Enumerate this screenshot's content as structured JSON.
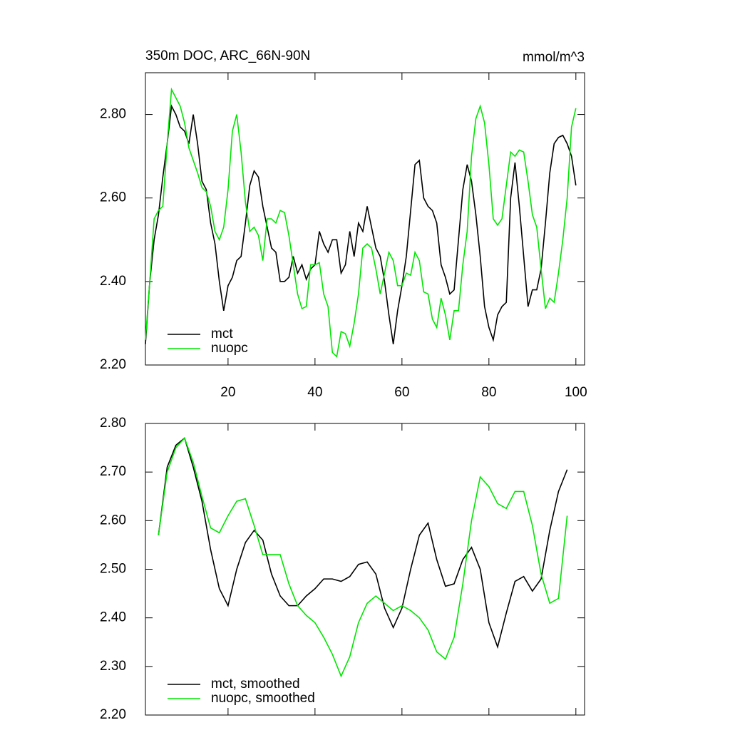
{
  "chart_data": [
    {
      "type": "line",
      "title": "350m DOC, ARC_66N-90N",
      "units": "mmol/m^3",
      "x": [
        1,
        2,
        3,
        4,
        5,
        6,
        7,
        8,
        9,
        10,
        11,
        12,
        13,
        14,
        15,
        16,
        17,
        18,
        19,
        20,
        21,
        22,
        23,
        24,
        25,
        26,
        27,
        28,
        29,
        30,
        31,
        32,
        33,
        34,
        35,
        36,
        37,
        38,
        39,
        40,
        41,
        42,
        43,
        44,
        45,
        46,
        47,
        48,
        49,
        50,
        51,
        52,
        53,
        54,
        55,
        56,
        57,
        58,
        59,
        60,
        61,
        62,
        63,
        64,
        65,
        66,
        67,
        68,
        69,
        70,
        71,
        72,
        73,
        74,
        75,
        76,
        77,
        78,
        79,
        80,
        81,
        82,
        83,
        84,
        85,
        86,
        87,
        88,
        89,
        90,
        91,
        92,
        93,
        94,
        95,
        96,
        97,
        98,
        99,
        100
      ],
      "series": [
        {
          "name": "mct",
          "color": "#000000",
          "values": [
            2.25,
            2.4,
            2.5,
            2.56,
            2.65,
            2.73,
            2.82,
            2.8,
            2.77,
            2.76,
            2.73,
            2.8,
            2.73,
            2.64,
            2.62,
            2.54,
            2.49,
            2.4,
            2.33,
            2.39,
            2.41,
            2.45,
            2.46,
            2.54,
            2.63,
            2.665,
            2.65,
            2.58,
            2.53,
            2.48,
            2.47,
            2.4,
            2.4,
            2.41,
            2.46,
            2.42,
            2.44,
            2.405,
            2.43,
            2.44,
            2.52,
            2.49,
            2.47,
            2.5,
            2.5,
            2.42,
            2.44,
            2.52,
            2.46,
            2.54,
            2.52,
            2.58,
            2.53,
            2.48,
            2.46,
            2.4,
            2.32,
            2.25,
            2.33,
            2.39,
            2.46,
            2.57,
            2.68,
            2.69,
            2.6,
            2.58,
            2.57,
            2.54,
            2.44,
            2.41,
            2.37,
            2.38,
            2.5,
            2.62,
            2.68,
            2.64,
            2.56,
            2.46,
            2.34,
            2.29,
            2.26,
            2.32,
            2.34,
            2.35,
            2.6,
            2.685,
            2.58,
            2.46,
            2.34,
            2.38,
            2.38,
            2.43,
            2.54,
            2.66,
            2.73,
            2.745,
            2.75,
            2.73,
            2.7,
            2.63
          ]
        },
        {
          "name": "nuopc",
          "color": "#00e600",
          "values": [
            2.26,
            2.4,
            2.55,
            2.57,
            2.58,
            2.73,
            2.86,
            2.84,
            2.82,
            2.78,
            2.72,
            2.69,
            2.66,
            2.625,
            2.615,
            2.58,
            2.52,
            2.5,
            2.53,
            2.62,
            2.76,
            2.8,
            2.71,
            2.59,
            2.52,
            2.53,
            2.51,
            2.45,
            2.55,
            2.55,
            2.54,
            2.57,
            2.565,
            2.51,
            2.44,
            2.37,
            2.335,
            2.34,
            2.44,
            2.44,
            2.445,
            2.37,
            2.34,
            2.23,
            2.22,
            2.28,
            2.275,
            2.245,
            2.3,
            2.37,
            2.48,
            2.49,
            2.48,
            2.43,
            2.37,
            2.42,
            2.47,
            2.45,
            2.39,
            2.39,
            2.42,
            2.415,
            2.47,
            2.45,
            2.375,
            2.37,
            2.31,
            2.29,
            2.36,
            2.32,
            2.26,
            2.33,
            2.33,
            2.44,
            2.52,
            2.7,
            2.79,
            2.82,
            2.78,
            2.68,
            2.55,
            2.535,
            2.55,
            2.63,
            2.71,
            2.7,
            2.715,
            2.71,
            2.64,
            2.56,
            2.53,
            2.43,
            2.335,
            2.36,
            2.35,
            2.42,
            2.5,
            2.6,
            2.77,
            2.815
          ]
        }
      ],
      "xlim": [
        1,
        102
      ],
      "xticks": [
        20,
        40,
        60,
        80,
        100
      ],
      "show_xtick_labels": true,
      "ylim": [
        2.2,
        2.9
      ],
      "yticks": [
        {
          "value": 2.2,
          "label": "2.20"
        },
        {
          "value": 2.4,
          "label": "2.40"
        },
        {
          "value": 2.6,
          "label": "2.60"
        },
        {
          "value": 2.8,
          "label": "2.80"
        }
      ],
      "legend": "lower left"
    },
    {
      "type": "line",
      "x": [
        4,
        6,
        8,
        10,
        12,
        14,
        16,
        18,
        20,
        22,
        24,
        26,
        28,
        30,
        32,
        34,
        36,
        38,
        40,
        42,
        44,
        46,
        48,
        50,
        52,
        54,
        56,
        58,
        60,
        62,
        64,
        66,
        68,
        70,
        72,
        74,
        76,
        78,
        80,
        82,
        84,
        86,
        88,
        90,
        92,
        94,
        96,
        98
      ],
      "series": [
        {
          "name": "mct, smoothed",
          "color": "#000000",
          "values": [
            2.57,
            2.71,
            2.755,
            2.77,
            2.71,
            2.64,
            2.54,
            2.46,
            2.425,
            2.5,
            2.555,
            2.58,
            2.56,
            2.49,
            2.445,
            2.425,
            2.425,
            2.445,
            2.46,
            2.48,
            2.48,
            2.475,
            2.485,
            2.51,
            2.515,
            2.49,
            2.42,
            2.38,
            2.42,
            2.5,
            2.57,
            2.595,
            2.52,
            2.465,
            2.47,
            2.52,
            2.545,
            2.5,
            2.39,
            2.34,
            2.41,
            2.475,
            2.485,
            2.455,
            2.48,
            2.58,
            2.66,
            2.705
          ]
        },
        {
          "name": "nuopc, smoothed",
          "color": "#00e600",
          "values": [
            2.57,
            2.7,
            2.75,
            2.77,
            2.72,
            2.65,
            2.585,
            2.575,
            2.61,
            2.64,
            2.645,
            2.59,
            2.53,
            2.53,
            2.53,
            2.47,
            2.425,
            2.405,
            2.39,
            2.36,
            2.325,
            2.28,
            2.32,
            2.39,
            2.43,
            2.445,
            2.43,
            2.415,
            2.425,
            2.415,
            2.4,
            2.375,
            2.33,
            2.315,
            2.36,
            2.47,
            2.6,
            2.69,
            2.67,
            2.635,
            2.625,
            2.66,
            2.66,
            2.59,
            2.49,
            2.43,
            2.44,
            2.61
          ]
        }
      ],
      "xlim": [
        1,
        102
      ],
      "xticks": [
        20,
        40,
        60,
        80,
        100
      ],
      "show_xtick_labels": false,
      "ylim": [
        2.2,
        2.8
      ],
      "yticks": [
        {
          "value": 2.2,
          "label": "2.20"
        },
        {
          "value": 2.3,
          "label": "2.30"
        },
        {
          "value": 2.4,
          "label": "2.40"
        },
        {
          "value": 2.5,
          "label": "2.50"
        },
        {
          "value": 2.6,
          "label": "2.60"
        },
        {
          "value": 2.7,
          "label": "2.70"
        },
        {
          "value": 2.8,
          "label": "2.80"
        }
      ],
      "legend": "lower left"
    }
  ]
}
